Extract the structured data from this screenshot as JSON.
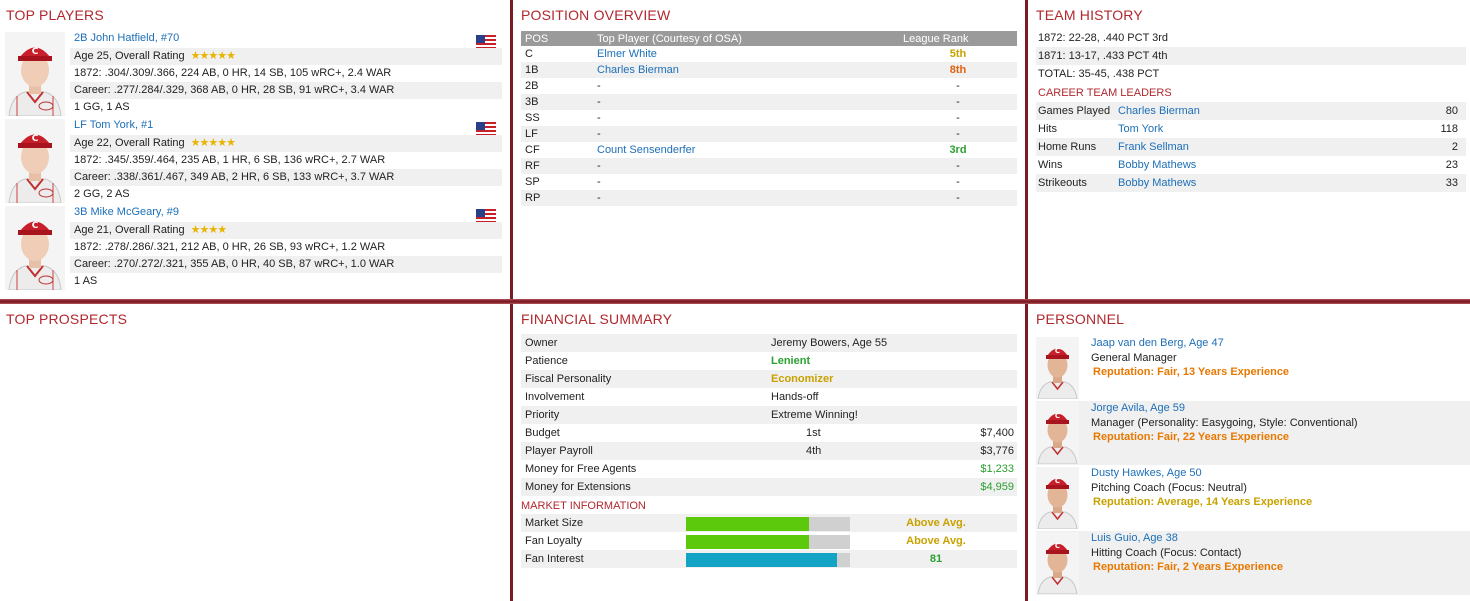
{
  "top_players": {
    "title": "TOP PLAYERS",
    "players": [
      {
        "name": "2B John Hatfield, #70",
        "age_rating": "Age 25, Overall Rating",
        "stars": "★★★★★",
        "season": "1872: .304/.309/.366, 224 AB, 0 HR, 14 SB, 105 wRC+, 2.4 WAR",
        "career": "Career: .277/.284/.329, 368 AB, 0 HR, 28 SB, 91 wRC+, 3.4 WAR",
        "awards": "1 GG, 1 AS"
      },
      {
        "name": "LF Tom York, #1",
        "age_rating": "Age 22, Overall Rating",
        "stars": "★★★★★",
        "season": "1872: .345/.359/.464, 235 AB, 1 HR, 6 SB, 136 wRC+, 2.7 WAR",
        "career": "Career: .338/.361/.467, 349 AB, 2 HR, 6 SB, 133 wRC+, 3.7 WAR",
        "awards": "2 GG, 2 AS"
      },
      {
        "name": "3B Mike McGeary, #9",
        "age_rating": "Age 21, Overall Rating",
        "stars": "★★★★",
        "season": "1872: .278/.286/.321, 212 AB, 0 HR, 26 SB, 93 wRC+, 1.2 WAR",
        "career": "Career: .270/.272/.321, 355 AB, 0 HR, 40 SB, 87 wRC+, 1.0 WAR",
        "awards": "1 AS"
      }
    ]
  },
  "position_overview": {
    "title": "POSITION OVERVIEW",
    "headers": {
      "pos": "POS",
      "player": "Top Player (Courtesy of OSA)",
      "rank": "League Rank"
    },
    "rows": [
      {
        "pos": "C",
        "player": "Elmer White",
        "rank": "5th"
      },
      {
        "pos": "1B",
        "player": "Charles Bierman",
        "rank": "8th"
      },
      {
        "pos": "2B",
        "player": "-",
        "rank": "-"
      },
      {
        "pos": "3B",
        "player": "-",
        "rank": "-"
      },
      {
        "pos": "SS",
        "player": "-",
        "rank": "-"
      },
      {
        "pos": "LF",
        "player": "-",
        "rank": "-"
      },
      {
        "pos": "CF",
        "player": "Count Sensenderfer",
        "rank": "3rd"
      },
      {
        "pos": "RF",
        "player": "-",
        "rank": "-"
      },
      {
        "pos": "SP",
        "player": "-",
        "rank": "-"
      },
      {
        "pos": "RP",
        "player": "-",
        "rank": "-"
      }
    ]
  },
  "team_history": {
    "title": "TEAM HISTORY",
    "seasons": [
      "1872: 22-28, .440 PCT 3rd",
      "1871: 13-17, .433 PCT 4th",
      "TOTAL: 35-45, .438 PCT"
    ],
    "leaders_title": "CAREER TEAM LEADERS",
    "leaders": [
      {
        "stat": "Games Played",
        "name": "Charles Bierman",
        "value": "80"
      },
      {
        "stat": "Hits",
        "name": "Tom York",
        "value": "118"
      },
      {
        "stat": "Home Runs",
        "name": "Frank Sellman",
        "value": "2"
      },
      {
        "stat": "Wins",
        "name": "Bobby Mathews",
        "value": "23"
      },
      {
        "stat": "Strikeouts",
        "name": "Bobby Mathews",
        "value": "33"
      }
    ]
  },
  "top_prospects": {
    "title": "TOP PROSPECTS"
  },
  "financial": {
    "title": "FINANCIAL SUMMARY",
    "owner": {
      "label": "Owner",
      "value": "Jeremy Bowers, Age 55"
    },
    "patience": {
      "label": "Patience",
      "value": "Lenient"
    },
    "fiscal": {
      "label": "Fiscal Personality",
      "value": "Economizer"
    },
    "involvement": {
      "label": "Involvement",
      "value": "Hands-off"
    },
    "priority": {
      "label": "Priority",
      "value": "Extreme Winning!"
    },
    "budget": {
      "label": "Budget",
      "rank": "1st",
      "value": "$7,400"
    },
    "payroll": {
      "label": "Player Payroll",
      "rank": "4th",
      "value": "$3,776"
    },
    "free_agents": {
      "label": "Money for Free Agents",
      "value": "$1,233"
    },
    "extensions": {
      "label": "Money for Extensions",
      "value": "$4,959"
    },
    "market_title": "MARKET INFORMATION",
    "market": [
      {
        "label": "Market Size",
        "text": "Above Avg.",
        "level": 0.75,
        "color": "#5cc90c"
      },
      {
        "label": "Fan Loyalty",
        "text": "Above Avg.",
        "level": 0.75,
        "color": "#5cc90c"
      },
      {
        "label": "Fan Interest",
        "text": "81",
        "level": 0.92,
        "color": "#13a3c4"
      }
    ]
  },
  "personnel": {
    "title": "PERSONNEL",
    "staff": [
      {
        "name": "Jaap van den Berg, Age 47",
        "role": "General Manager",
        "rep": "Reputation: Fair, 13 Years Experience"
      },
      {
        "name": "Jorge Avila, Age 59",
        "role": "Manager (Personality: Easygoing, Style: Conventional)",
        "rep": "Reputation: Fair, 22 Years Experience"
      },
      {
        "name": "Dusty Hawkes, Age 50",
        "role": "Pitching Coach (Focus: Neutral)",
        "rep": "Reputation: Average, 14 Years Experience"
      },
      {
        "name": "Luis Guio, Age 38",
        "role": "Hitting Coach (Focus: Contact)",
        "rep": "Reputation: Fair, 2 Years Experience"
      }
    ]
  }
}
